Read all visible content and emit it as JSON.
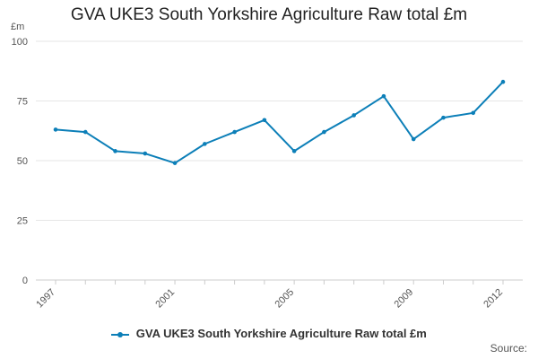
{
  "chart_data": {
    "type": "line",
    "title": "GVA UKE3 South Yorkshire Agriculture Raw total £m",
    "unit_label": "£m",
    "x": [
      1997,
      1998,
      1999,
      2000,
      2001,
      2002,
      2003,
      2004,
      2005,
      2006,
      2007,
      2008,
      2009,
      2010,
      2011,
      2012
    ],
    "x_tick_labels": [
      "1997",
      "2001",
      "2005",
      "2009",
      "2012"
    ],
    "y_ticks": [
      0,
      25,
      50,
      75,
      100
    ],
    "ylim": [
      0,
      100
    ],
    "series": [
      {
        "name": "GVA UKE3 South Yorkshire Agriculture Raw total £m",
        "values": [
          63,
          62,
          54,
          53,
          49,
          57,
          62,
          67,
          54,
          62,
          69,
          77,
          59,
          68,
          70,
          83
        ]
      }
    ],
    "grid": true,
    "legend_position": "bottom",
    "source_label": "Source:",
    "line_color": "#0c7fb8"
  }
}
